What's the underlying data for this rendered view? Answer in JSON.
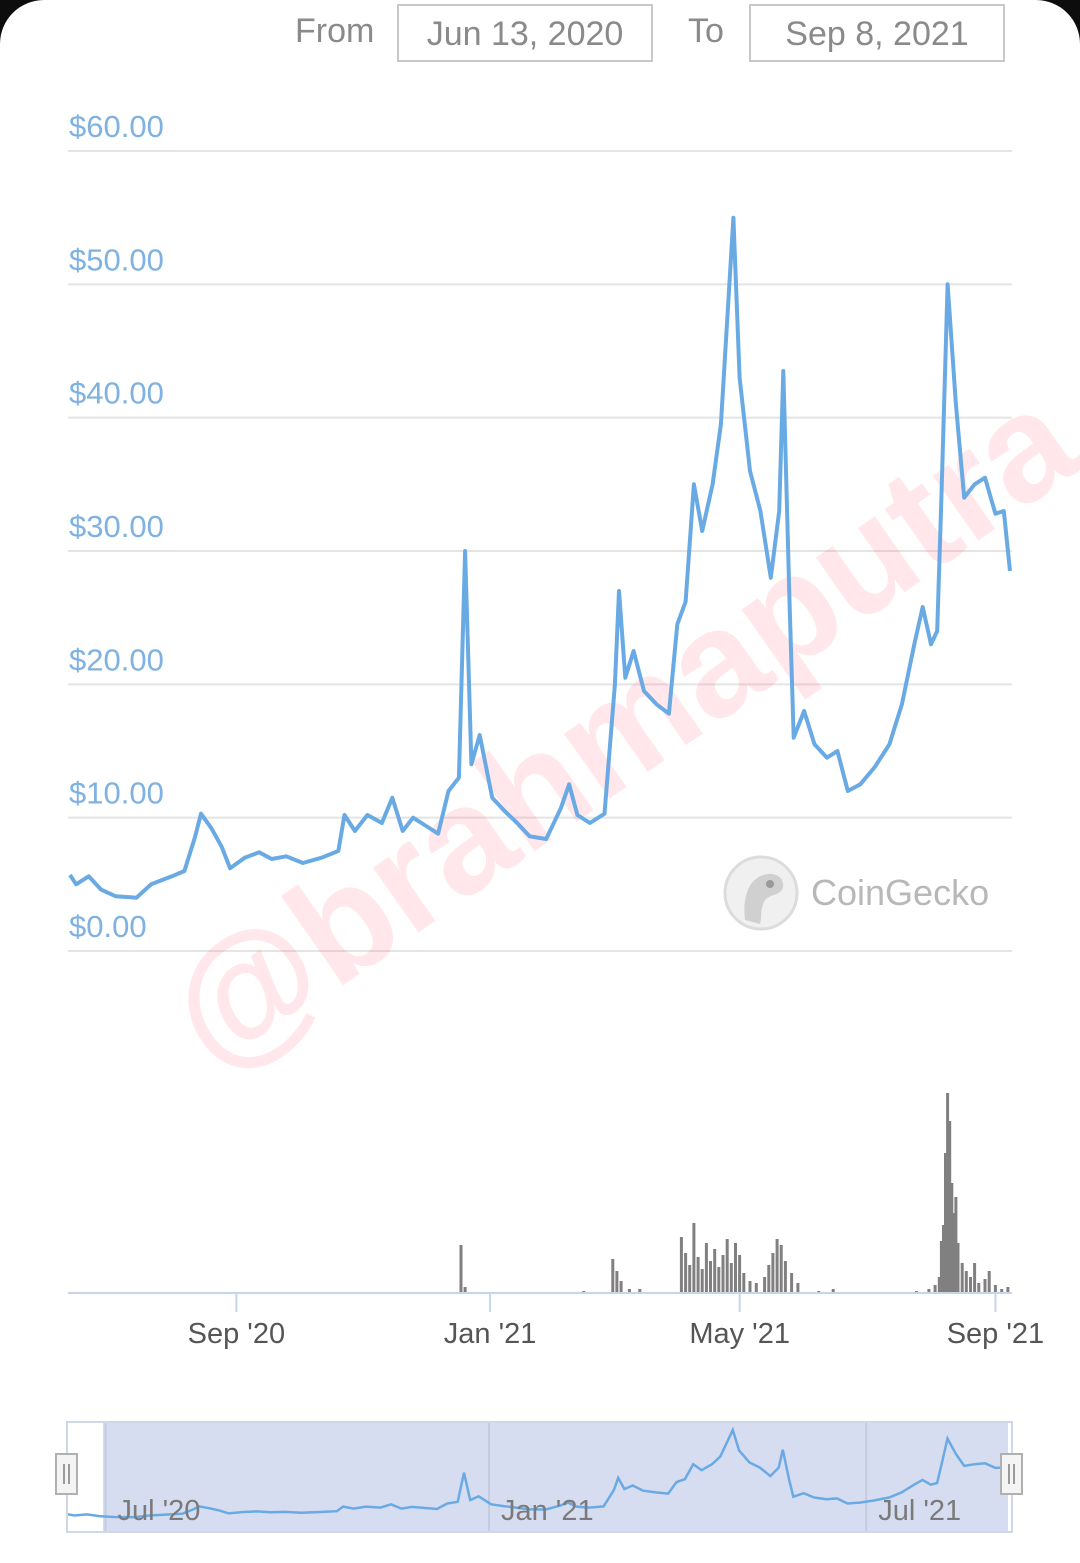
{
  "range": {
    "from_label": "From",
    "from_value": "Jun 13, 2020",
    "to_label": "To",
    "to_value": "Sep 8, 2021"
  },
  "watermark": "@brahmaputra",
  "brand": "CoinGecko",
  "colors": {
    "line": "#6aaae4",
    "volume": "#808080",
    "navigator_fill": "#d6ddf0",
    "grid": "#e4e4e4"
  },
  "chart_data": {
    "type": "line",
    "title": "",
    "xlabel": "",
    "ylabel": "",
    "ylim": [
      0,
      60
    ],
    "y_ticks": [
      "$0.00",
      "$10.00",
      "$20.00",
      "$30.00",
      "$40.00",
      "$50.00",
      "$60.00"
    ],
    "x_ticks": [
      {
        "label": "Sep '20",
        "date": "2020-09-01"
      },
      {
        "label": "Jan '21",
        "date": "2021-01-01"
      },
      {
        "label": "May '21",
        "date": "2021-05-01"
      },
      {
        "label": "Sep '21",
        "date": "2021-09-01"
      }
    ],
    "series": [
      {
        "values": [
          [
            "2020-06-13",
            5.7
          ],
          [
            "2020-06-16",
            5.0
          ],
          [
            "2020-06-22",
            5.6
          ],
          [
            "2020-06-28",
            4.6
          ],
          [
            "2020-07-05",
            4.1
          ],
          [
            "2020-07-15",
            4.0
          ],
          [
            "2020-07-22",
            5.0
          ],
          [
            "2020-08-01",
            5.6
          ],
          [
            "2020-08-07",
            6.0
          ],
          [
            "2020-08-12",
            8.5
          ],
          [
            "2020-08-15",
            10.3
          ],
          [
            "2020-08-20",
            9.2
          ],
          [
            "2020-08-25",
            7.8
          ],
          [
            "2020-08-29",
            6.2
          ],
          [
            "2020-09-05",
            7.0
          ],
          [
            "2020-09-12",
            7.4
          ],
          [
            "2020-09-18",
            6.9
          ],
          [
            "2020-09-25",
            7.1
          ],
          [
            "2020-10-03",
            6.6
          ],
          [
            "2020-10-12",
            7.0
          ],
          [
            "2020-10-20",
            7.5
          ],
          [
            "2020-10-23",
            10.2
          ],
          [
            "2020-10-28",
            9.0
          ],
          [
            "2020-11-03",
            10.2
          ],
          [
            "2020-11-10",
            9.6
          ],
          [
            "2020-11-15",
            11.5
          ],
          [
            "2020-11-20",
            9.0
          ],
          [
            "2020-11-25",
            10.0
          ],
          [
            "2020-12-02",
            9.3
          ],
          [
            "2020-12-07",
            8.8
          ],
          [
            "2020-12-12",
            12.0
          ],
          [
            "2020-12-17",
            13.0
          ],
          [
            "2020-12-20",
            30.0
          ],
          [
            "2020-12-23",
            14.0
          ],
          [
            "2020-12-27",
            16.2
          ],
          [
            "2021-01-02",
            11.5
          ],
          [
            "2021-01-08",
            10.5
          ],
          [
            "2021-01-14",
            9.6
          ],
          [
            "2021-01-20",
            8.6
          ],
          [
            "2021-01-28",
            8.4
          ],
          [
            "2021-02-04",
            10.7
          ],
          [
            "2021-02-08",
            12.5
          ],
          [
            "2021-02-12",
            10.2
          ],
          [
            "2021-02-18",
            9.6
          ],
          [
            "2021-02-25",
            10.3
          ],
          [
            "2021-03-02",
            20.0
          ],
          [
            "2021-03-04",
            27.0
          ],
          [
            "2021-03-07",
            20.5
          ],
          [
            "2021-03-11",
            22.5
          ],
          [
            "2021-03-16",
            19.5
          ],
          [
            "2021-03-22",
            18.5
          ],
          [
            "2021-03-28",
            17.8
          ],
          [
            "2021-04-01",
            24.5
          ],
          [
            "2021-04-05",
            26.2
          ],
          [
            "2021-04-09",
            35.0
          ],
          [
            "2021-04-13",
            31.5
          ],
          [
            "2021-04-18",
            35.0
          ],
          [
            "2021-04-22",
            39.5
          ],
          [
            "2021-04-28",
            55.0
          ],
          [
            "2021-05-01",
            43.0
          ],
          [
            "2021-05-06",
            36.0
          ],
          [
            "2021-05-11",
            33.0
          ],
          [
            "2021-05-16",
            28.0
          ],
          [
            "2021-05-20",
            33.0
          ],
          [
            "2021-05-22",
            43.5
          ],
          [
            "2021-05-25",
            26.0
          ],
          [
            "2021-05-27",
            16.0
          ],
          [
            "2021-06-01",
            18.0
          ],
          [
            "2021-06-06",
            15.5
          ],
          [
            "2021-06-12",
            14.5
          ],
          [
            "2021-06-17",
            15.0
          ],
          [
            "2021-06-22",
            12.0
          ],
          [
            "2021-06-28",
            12.5
          ],
          [
            "2021-07-05",
            13.8
          ],
          [
            "2021-07-12",
            15.5
          ],
          [
            "2021-07-18",
            18.5
          ],
          [
            "2021-07-24",
            23.0
          ],
          [
            "2021-07-28",
            25.8
          ],
          [
            "2021-08-01",
            23.0
          ],
          [
            "2021-08-04",
            24.0
          ],
          [
            "2021-08-06",
            34.0
          ],
          [
            "2021-08-09",
            50.0
          ],
          [
            "2021-08-13",
            41.0
          ],
          [
            "2021-08-17",
            34.0
          ],
          [
            "2021-08-22",
            35.0
          ],
          [
            "2021-08-27",
            35.5
          ],
          [
            "2021-09-01",
            32.8
          ],
          [
            "2021-09-05",
            33.0
          ],
          [
            "2021-09-08",
            28.5
          ]
        ]
      }
    ],
    "volume": [
      [
        "2020-12-18",
        0.24
      ],
      [
        "2020-12-20",
        0.03
      ],
      [
        "2021-02-15",
        0.01
      ],
      [
        "2021-03-01",
        0.17
      ],
      [
        "2021-03-03",
        0.11
      ],
      [
        "2021-03-05",
        0.06
      ],
      [
        "2021-03-09",
        0.02
      ],
      [
        "2021-03-14",
        0.02
      ],
      [
        "2021-04-03",
        0.28
      ],
      [
        "2021-04-05",
        0.2
      ],
      [
        "2021-04-07",
        0.14
      ],
      [
        "2021-04-09",
        0.35
      ],
      [
        "2021-04-11",
        0.18
      ],
      [
        "2021-04-13",
        0.12
      ],
      [
        "2021-04-15",
        0.25
      ],
      [
        "2021-04-17",
        0.16
      ],
      [
        "2021-04-19",
        0.22
      ],
      [
        "2021-04-21",
        0.13
      ],
      [
        "2021-04-23",
        0.19
      ],
      [
        "2021-04-25",
        0.27
      ],
      [
        "2021-04-27",
        0.15
      ],
      [
        "2021-04-29",
        0.25
      ],
      [
        "2021-05-01",
        0.19
      ],
      [
        "2021-05-03",
        0.1
      ],
      [
        "2021-05-06",
        0.06
      ],
      [
        "2021-05-09",
        0.05
      ],
      [
        "2021-05-13",
        0.08
      ],
      [
        "2021-05-15",
        0.14
      ],
      [
        "2021-05-17",
        0.2
      ],
      [
        "2021-05-19",
        0.27
      ],
      [
        "2021-05-21",
        0.24
      ],
      [
        "2021-05-23",
        0.16
      ],
      [
        "2021-05-26",
        0.1
      ],
      [
        "2021-05-29",
        0.05
      ],
      [
        "2021-06-08",
        0.01
      ],
      [
        "2021-06-15",
        0.02
      ],
      [
        "2021-07-25",
        0.01
      ],
      [
        "2021-07-31",
        0.02
      ],
      [
        "2021-08-03",
        0.04
      ],
      [
        "2021-08-05",
        0.08
      ],
      [
        "2021-08-06",
        0.26
      ],
      [
        "2021-08-07",
        0.34
      ],
      [
        "2021-08-08",
        0.7
      ],
      [
        "2021-08-09",
        1.0
      ],
      [
        "2021-08-10",
        0.86
      ],
      [
        "2021-08-11",
        0.55
      ],
      [
        "2021-08-12",
        0.4
      ],
      [
        "2021-08-13",
        0.48
      ],
      [
        "2021-08-14",
        0.25
      ],
      [
        "2021-08-16",
        0.15
      ],
      [
        "2021-08-18",
        0.11
      ],
      [
        "2021-08-20",
        0.08
      ],
      [
        "2021-08-22",
        0.15
      ],
      [
        "2021-08-24",
        0.05
      ],
      [
        "2021-08-27",
        0.07
      ],
      [
        "2021-08-29",
        0.11
      ],
      [
        "2021-09-01",
        0.04
      ],
      [
        "2021-09-04",
        0.02
      ],
      [
        "2021-09-07",
        0.03
      ]
    ],
    "navigator": {
      "range": [
        "2020-06-13",
        "2021-09-08"
      ],
      "labels": [
        {
          "label": "Jul '20",
          "date": "2020-07-01"
        },
        {
          "label": "Jan '21",
          "date": "2021-01-01"
        },
        {
          "label": "Jul '21",
          "date": "2021-07-01"
        }
      ]
    }
  }
}
